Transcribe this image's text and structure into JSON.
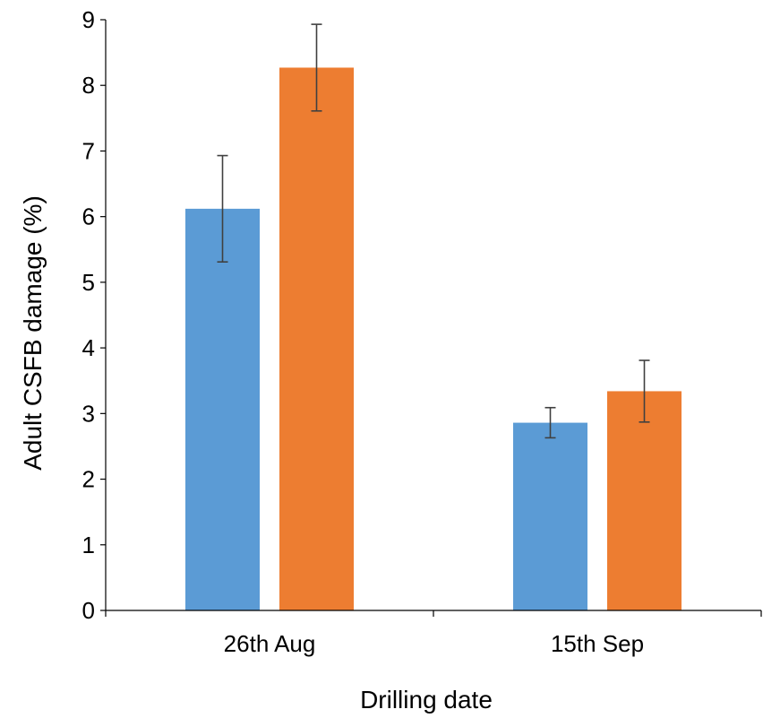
{
  "chart_data": {
    "type": "bar",
    "title": "",
    "xlabel": "Drilling date",
    "ylabel": "Adult CSFB damage (%)",
    "categories": [
      "26th Aug",
      "15th Sep"
    ],
    "ylim": [
      0,
      9
    ],
    "yticks": [
      0,
      1,
      2,
      3,
      4,
      5,
      6,
      7,
      8,
      9
    ],
    "grid": false,
    "legend": "none",
    "series": [
      {
        "color": "#5b9bd5",
        "values": [
          6.12,
          2.86
        ],
        "error_low": [
          5.31,
          2.63
        ],
        "error_high": [
          6.93,
          3.09
        ]
      },
      {
        "color": "#ed7d31",
        "values": [
          8.27,
          3.34
        ],
        "error_low": [
          7.61,
          2.87
        ],
        "error_high": [
          8.93,
          3.81
        ]
      }
    ]
  }
}
